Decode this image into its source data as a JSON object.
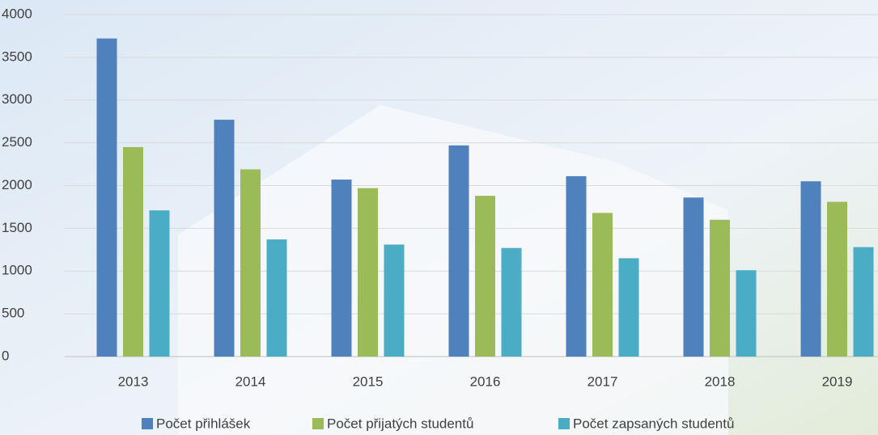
{
  "chart_data": {
    "type": "bar",
    "categories": [
      "2013",
      "2014",
      "2015",
      "2016",
      "2017",
      "2018",
      "2019"
    ],
    "series": [
      {
        "name": "Počet přihlášek",
        "color": "#4f81bd",
        "values": [
          3720,
          2770,
          2070,
          2470,
          2110,
          1860,
          2050
        ]
      },
      {
        "name": "Počet přijatých studentů",
        "color": "#9bbb59",
        "values": [
          2450,
          2190,
          1970,
          1880,
          1680,
          1600,
          1810
        ]
      },
      {
        "name": "Počet zapsaných studentů",
        "color": "#4bacc6",
        "values": [
          1710,
          1370,
          1310,
          1270,
          1150,
          1010,
          1280
        ]
      }
    ],
    "ylim": [
      0,
      4000
    ],
    "yticks": [
      0,
      500,
      1000,
      1500,
      2000,
      2500,
      3000,
      3500,
      4000
    ],
    "grid": true,
    "legend": "bottom"
  }
}
